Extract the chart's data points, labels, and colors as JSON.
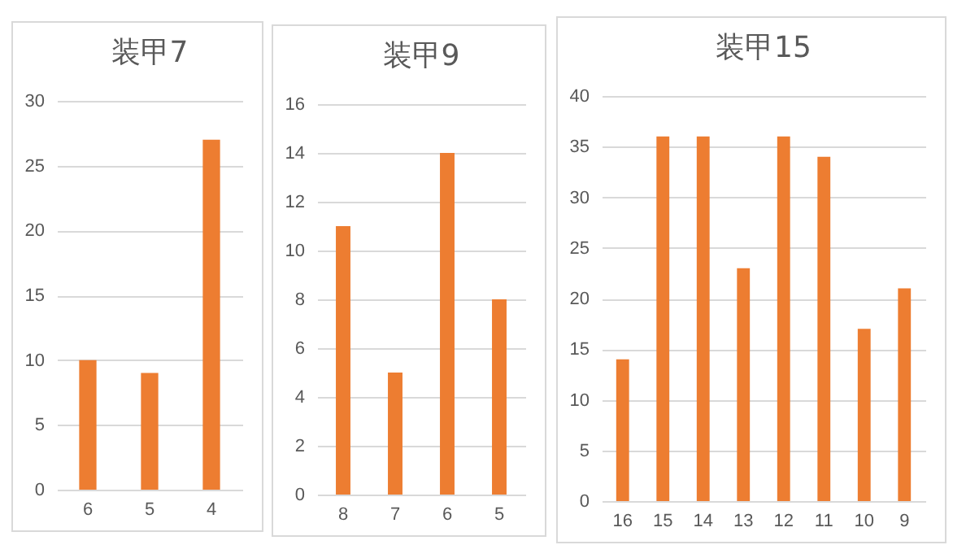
{
  "chart_data": [
    {
      "type": "bar",
      "title": "装甲7",
      "categories": [
        "6",
        "5",
        "4"
      ],
      "values": [
        10,
        9,
        27
      ],
      "color": "#ed7d31",
      "ylim": [
        0,
        30
      ],
      "yticks": [
        0,
        5,
        10,
        15,
        20,
        25,
        30
      ],
      "grid": "y"
    },
    {
      "type": "bar",
      "title": "装甲9",
      "categories": [
        "8",
        "7",
        "6",
        "5"
      ],
      "values": [
        11,
        5,
        14,
        8
      ],
      "color": "#ed7d31",
      "ylim": [
        0,
        16
      ],
      "yticks": [
        0,
        2,
        4,
        6,
        8,
        10,
        12,
        14,
        16
      ],
      "grid": "y"
    },
    {
      "type": "bar",
      "title": "装甲15",
      "categories": [
        "16",
        "15",
        "14",
        "13",
        "12",
        "11",
        "10",
        "9"
      ],
      "values": [
        14,
        36,
        36,
        23,
        36,
        34,
        17,
        21
      ],
      "color": "#ed7d31",
      "ylim": [
        0,
        40
      ],
      "yticks": [
        0,
        5,
        10,
        15,
        20,
        25,
        30,
        35,
        40
      ],
      "grid": "y"
    }
  ]
}
